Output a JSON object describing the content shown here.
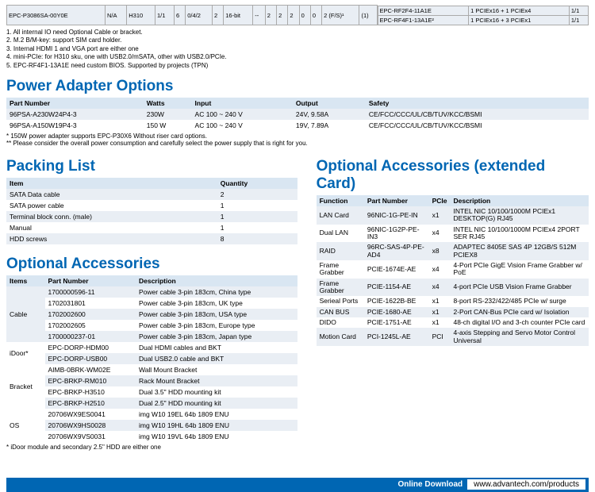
{
  "topTable": {
    "background": "#e9eef4",
    "cells": [
      "EPC-P3086SA-00Y0E",
      "N/A",
      "H310",
      "1/1",
      "6",
      "0/4/2",
      "2",
      "16-bit",
      "--",
      "2",
      "2",
      "2",
      "0",
      "0",
      "2 (F/S)¹",
      "(1)"
    ],
    "rightRows": [
      [
        "EPC-RF2F4-11A1E",
        "1 PCIEx16 + 1 PCIEx4",
        "1/1"
      ],
      [
        "EPC-RF4F1-13A1E²",
        "1 PCIEx16 + 3 PCIEx1",
        "1/1"
      ]
    ]
  },
  "topNotes": [
    "1. All internal IO need Optional Cable or bracket.",
    "2. M.2 B/M-key: support SIM card holder.",
    "3. Internal HDMI 1 and VGA port are either one",
    "4. mini-PCIe: for H310 sku, one with USB2.0/mSATA, other with USB2.0/PCIe.",
    "5. EPC-RF4F1-13A1E need custom BIOS. Supported by projects (TPN)"
  ],
  "powerTitle": "Power Adapter Options",
  "powerTable": {
    "headers": [
      "Part Number",
      "Watts",
      "Input",
      "Output",
      "Safety"
    ],
    "rows": [
      [
        "96PSA-A230W24P4-3",
        "230W",
        "AC 100 ~ 240 V",
        "24V, 9.58A",
        "CE/FCC/CCC/UL/CB/TUV/KCC/BSMI"
      ],
      [
        "96PSA-A150W19P4-3",
        "150 W",
        "AC 100 ~ 240 V",
        "19V, 7.89A",
        "CE/FCC/CCC/UL/CB/TUV/KCC/BSMI"
      ]
    ]
  },
  "powerNotes": [
    "* 150W power adapter supports EPC-P30X6 Without riser card options.",
    "** Please consider the overall power consumption and carefully select the power supply that is right for you."
  ],
  "packTitle": "Packing List",
  "packTable": {
    "headers": [
      "Item",
      "Quantity"
    ],
    "rows": [
      [
        "SATA Data cable",
        "2"
      ],
      [
        "SATA power cable",
        "1"
      ],
      [
        "Terminal block conn. (male)",
        "1"
      ],
      [
        "Manual",
        "1"
      ],
      [
        "HDD screws",
        "8"
      ]
    ]
  },
  "optAccTitle": "Optional Accessories",
  "optAccTable": {
    "headers": [
      "Items",
      "Part Number",
      "Description"
    ],
    "groups": [
      {
        "name": "Cable",
        "rows": [
          [
            "1700000596-11",
            "Power cable 3-pin 183cm, China type"
          ],
          [
            "1702031801",
            "Power cable 3-pin 183cm, UK type"
          ],
          [
            "1702002600",
            "Power cable 3-pin 183cm, USA type"
          ],
          [
            "1702002605",
            "Power cable 3-pin 183cm, Europe type"
          ],
          [
            "1700000237-01",
            "Power cable 3-pin 183cm, Japan type"
          ]
        ]
      },
      {
        "name": "iDoor*",
        "rows": [
          [
            "EPC-DORP-HDM00",
            "Dual HDMI cables and BKT"
          ],
          [
            "EPC-DORP-USB00",
            "Dual USB2.0 cable and BKT"
          ]
        ]
      },
      {
        "name": "Bracket",
        "rows": [
          [
            "AIMB-0BRK-WM02E",
            "Wall Mount Bracket"
          ],
          [
            "EPC-BRKP-RM010",
            "Rack Mount Bracket"
          ],
          [
            "EPC-BRKP-H3510",
            "Dual 3.5\" HDD mounting kit"
          ],
          [
            "EPC-BRKP-H2510",
            "Dual 2.5\" HDD mounting kit"
          ]
        ]
      },
      {
        "name": "OS",
        "rows": [
          [
            "20706WX9ES0041",
            "img W10 19EL 64b 1809 ENU"
          ],
          [
            "20706WX9HS0028",
            "img W10 19HL 64b 1809 ENU"
          ],
          [
            "20706WX9VS0031",
            "img W10 19VL 64b 1809 ENU"
          ]
        ]
      }
    ]
  },
  "idoorNote": "* iDoor module and secondary 2.5\" HDD are either one",
  "extTitle": "Optional Accessories (extended Card)",
  "extTable": {
    "headers": [
      "Function",
      "Part Number",
      "PCIe",
      "Description"
    ],
    "rows": [
      [
        "LAN Card",
        "96NIC-1G-PE-IN",
        "x1",
        "INTEL NIC 10/100/1000M PCIEx1 DESKTOP(G) RJ45"
      ],
      [
        "Dual LAN",
        "96NIC-1G2P-PE-IN3",
        "x4",
        "INTEL NIC 10/100/1000M PCIEx4 2PORT SER RJ45"
      ],
      [
        "RAID",
        "96RC-SAS-4P-PE-AD4",
        "x8",
        "ADAPTEC 8405E SAS 4P 12GB/S 512M PCIEX8"
      ],
      [
        "Frame Grabber",
        "PCIE-1674E-AE",
        "x4",
        "4-Port PCIe GigE Vision Frame Grabber w/ PoE"
      ],
      [
        "Frame Grabber",
        "PCIE-1154-AE",
        "x4",
        "4-port PCIe USB Vision Frame Grabber"
      ],
      [
        "Serieal Ports",
        "PCIE-1622B-BE",
        "x1",
        "8-port RS-232/422/485 PCIe w/ surge"
      ],
      [
        "CAN BUS",
        "PCIE-1680-AE",
        "x1",
        "2-Port CAN-Bus PCIe card w/ Isolation"
      ],
      [
        "DIDO",
        "PCIE-1751-AE",
        "x1",
        "48-ch digital I/O and 3-ch counter PCIe card"
      ],
      [
        "Motion Card",
        "PCI-1245L-AE",
        "PCI",
        "4-axis Stepping and Servo Motor Control Universal"
      ]
    ]
  },
  "footer": {
    "label": "Online Download",
    "url": "www.advantech.com/products"
  },
  "colors": {
    "brand": "#0066b3",
    "headerBg": "#d9e6f2",
    "altRow": "#e9eef4"
  }
}
